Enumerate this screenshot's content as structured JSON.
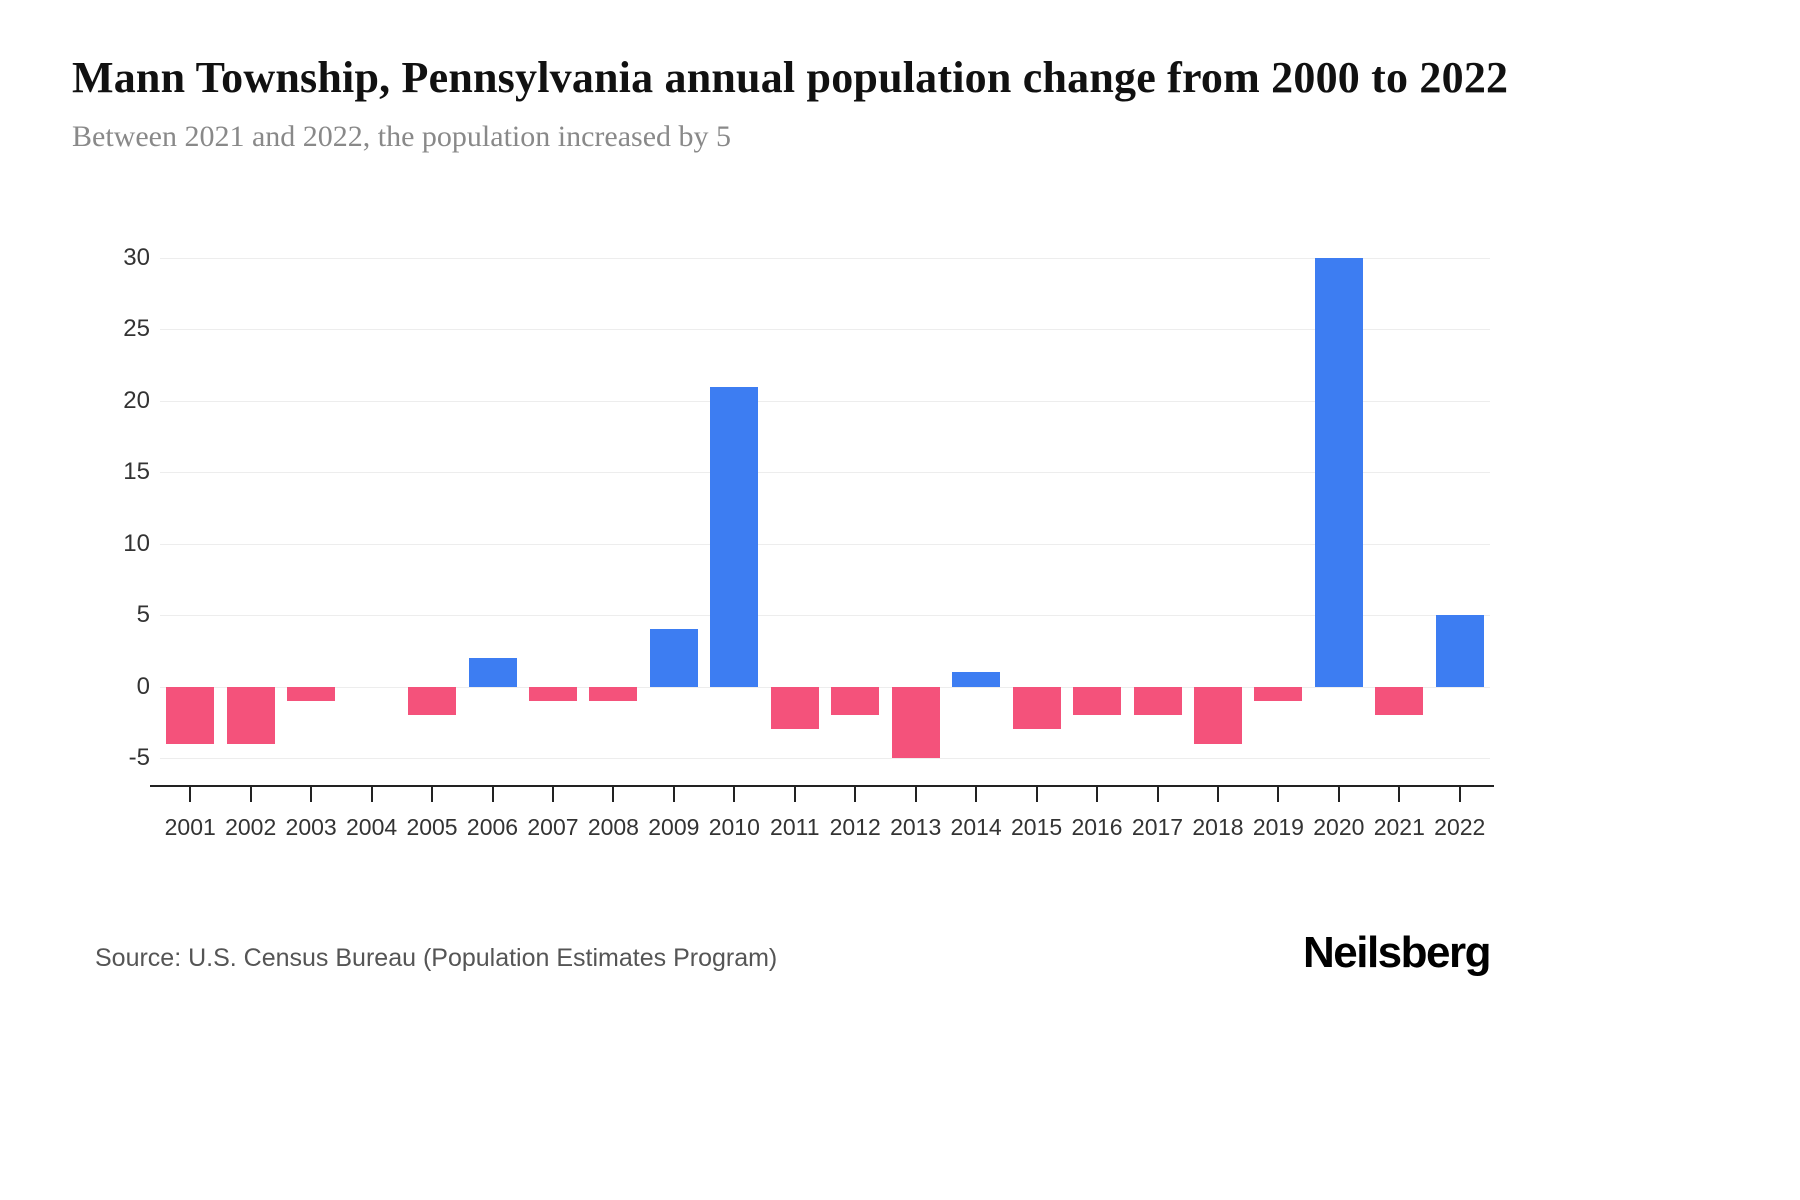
{
  "page": {
    "title": "Mann Township, Pennsylvania annual population change from 2000 to 2022",
    "subtitle": "Between 2021 and 2022, the population increased by 5",
    "source": "Source: U.S. Census Bureau (Population Estimates Program)",
    "logo": "Neilsberg"
  },
  "chart_data": {
    "type": "bar",
    "title": "Mann Township, Pennsylvania annual population change from 2000 to 2022",
    "subtitle": "Between 2021 and 2022, the population increased by 5",
    "xlabel": "",
    "ylabel": "",
    "categories": [
      "2001",
      "2002",
      "2003",
      "2004",
      "2005",
      "2006",
      "2007",
      "2008",
      "2009",
      "2010",
      "2011",
      "2012",
      "2013",
      "2014",
      "2015",
      "2016",
      "2017",
      "2018",
      "2019",
      "2020",
      "2021",
      "2022"
    ],
    "values": [
      -4,
      -4,
      -1,
      0,
      -2,
      2,
      -1,
      -1,
      4,
      21,
      -3,
      -2,
      -5,
      1,
      -3,
      -2,
      -2,
      -4,
      -1,
      30,
      -2,
      5
    ],
    "ylim": [
      -5,
      30
    ],
    "yticks": [
      -5,
      0,
      5,
      10,
      15,
      20,
      25,
      30
    ],
    "grid": true,
    "legend": false,
    "colors": {
      "positive": "#3d7df2",
      "negative": "#f4527b"
    }
  }
}
